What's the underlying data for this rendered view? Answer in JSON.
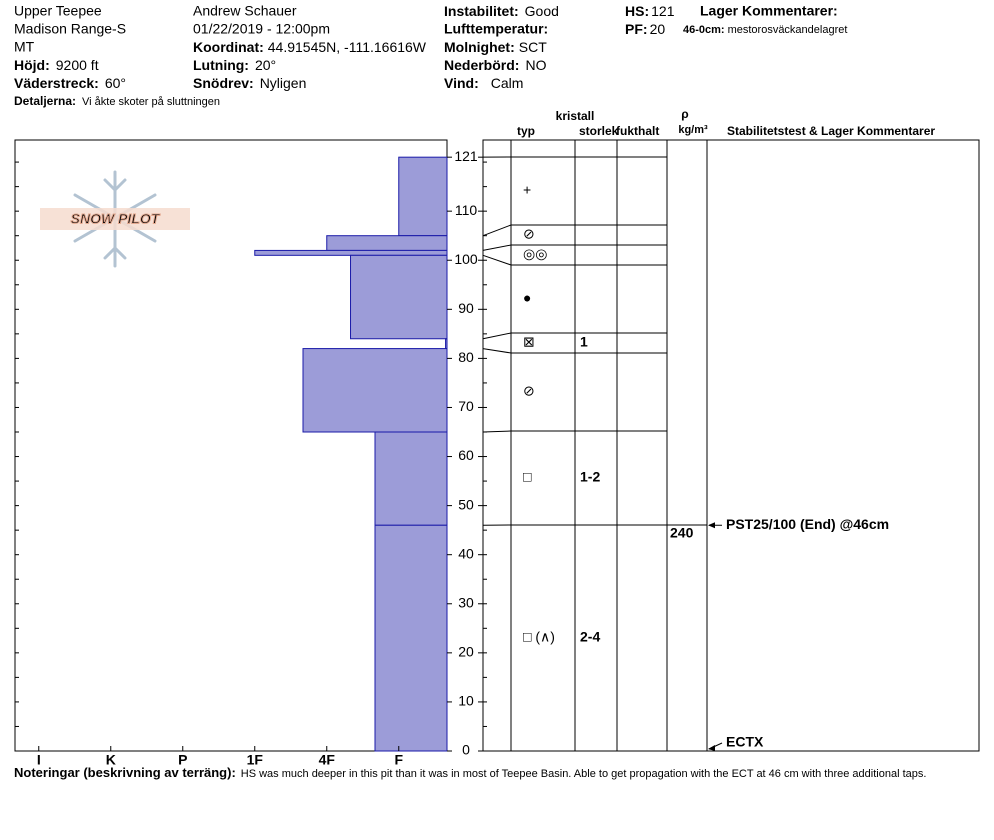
{
  "header": {
    "site": "Upper Teepee",
    "range": "Madison Range-S",
    "state": "MT",
    "elevation": {
      "label": "Höjd:",
      "value": "9200 ft"
    },
    "aspect": {
      "label": "Väderstreck:",
      "value": "60°"
    },
    "details": {
      "label": "Detaljerna:",
      "value": "Vi åkte skoter på sluttningen"
    },
    "observer": "Andrew Schauer",
    "datetime": "01/22/2019 - 12:00pm",
    "coordinates": {
      "label": "Koordinat:",
      "value": "44.91545N, -111.16616W"
    },
    "slope": {
      "label": "Lutning:",
      "value": "20°"
    },
    "wind_loading": {
      "label": "Snödrev:",
      "value": "Nyligen"
    },
    "stability": {
      "label": "Instabilitet:",
      "value": "Good"
    },
    "air_temp": {
      "label": "Lufttemperatur:"
    },
    "sky": {
      "label": "Molnighet:",
      "value": "SCT"
    },
    "precip": {
      "label": "Nederbörd:",
      "value": "NO"
    },
    "wind": {
      "label": "Vind:",
      "value": "Calm"
    },
    "hs": {
      "label": "HS:",
      "value": 121
    },
    "pf": {
      "label": "PF:",
      "value": 20
    },
    "layer_comments": {
      "label": "Lager Kommentarer:",
      "items": [
        {
          "label": "46-0cm:",
          "value": "mestorosväckandelagret"
        }
      ]
    }
  },
  "logo": "SNOW PILOT",
  "notes": {
    "label": "Noteringar (beskrivning av terräng):",
    "value": "HS was much deeper in this pit than it was in most of Teepee Basin. Able to get propagation with the ECT at 46 cm with three additional taps."
  },
  "chart_data": {
    "type": "hardness-profile",
    "xlim": [
      6.33,
      0.33
    ],
    "xticks": [
      {
        "value": 6,
        "label": "I"
      },
      {
        "value": 5,
        "label": "K"
      },
      {
        "value": 4,
        "label": "P"
      },
      {
        "value": 3,
        "label": "1F"
      },
      {
        "value": 2,
        "label": "4F"
      },
      {
        "value": 1,
        "label": "F"
      }
    ],
    "ylim": [
      0,
      124.5
    ],
    "yticks": [
      0,
      10,
      20,
      30,
      40,
      50,
      60,
      70,
      80,
      90,
      100,
      110,
      121
    ],
    "color": "#9c9cd8",
    "edge_color": "#1a1aa8",
    "columns": {
      "crystal": "kristall",
      "type": "typ",
      "size": "storlek",
      "moisture": "fukthalt",
      "rho": "ρ",
      "density_unit": "kg/m³",
      "comments": "Stabilitetstest & Lager Kommentarer"
    },
    "layers": [
      {
        "top": 121,
        "bottom": 105,
        "hardness": 1,
        "grain": "+"
      },
      {
        "top": 105,
        "bottom": 102,
        "hardness": 2,
        "grain": "⊘"
      },
      {
        "top": 102,
        "bottom": 101,
        "hardness": 3,
        "grain": "◎◎"
      },
      {
        "top": 101,
        "bottom": 84,
        "hardness": 1.67,
        "grain": "●"
      },
      {
        "top": 84,
        "bottom": 82,
        "hardness": 0.35,
        "grain": "⊠",
        "size": "1"
      },
      {
        "top": 82,
        "bottom": 65,
        "hardness": 2.33,
        "grain": "⊘"
      },
      {
        "top": 65,
        "bottom": 46,
        "hardness": 1.33,
        "grain": "□",
        "size": "1-2"
      },
      {
        "top": 46,
        "bottom": 0,
        "hardness": 1.33,
        "grain": "□ (∧)",
        "size": "2-4",
        "density": 240
      }
    ],
    "tests": [
      {
        "height": 46,
        "label": "PST25/100 (End) @46cm"
      },
      {
        "height": 0,
        "label": "ECTX"
      }
    ]
  }
}
